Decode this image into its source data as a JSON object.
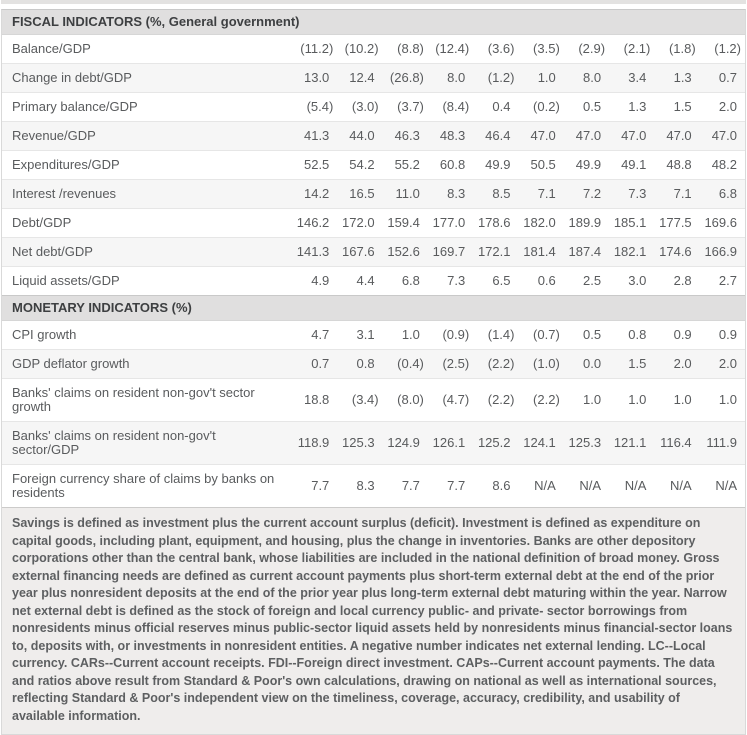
{
  "table": {
    "sections": [
      {
        "header": "FISCAL INDICATORS (%, General government)",
        "rows": [
          {
            "label": "Balance/GDP",
            "values": [
              "(11.2)",
              "(10.2)",
              "(8.8)",
              "(12.4)",
              "(3.6)",
              "(3.5)",
              "(2.9)",
              "(2.1)",
              "(1.8)",
              "(1.2)"
            ]
          },
          {
            "label": "Change in debt/GDP",
            "values": [
              "13.0",
              "12.4",
              "(26.8)",
              "8.0",
              "(1.2)",
              "1.0",
              "8.0",
              "3.4",
              "1.3",
              "0.7"
            ]
          },
          {
            "label": "Primary balance/GDP",
            "values": [
              "(5.4)",
              "(3.0)",
              "(3.7)",
              "(8.4)",
              "0.4",
              "(0.2)",
              "0.5",
              "1.3",
              "1.5",
              "2.0"
            ]
          },
          {
            "label": "Revenue/GDP",
            "values": [
              "41.3",
              "44.0",
              "46.3",
              "48.3",
              "46.4",
              "47.0",
              "47.0",
              "47.0",
              "47.0",
              "47.0"
            ]
          },
          {
            "label": "Expenditures/GDP",
            "values": [
              "52.5",
              "54.2",
              "55.2",
              "60.8",
              "49.9",
              "50.5",
              "49.9",
              "49.1",
              "48.8",
              "48.2"
            ]
          },
          {
            "label": "Interest /revenues",
            "values": [
              "14.2",
              "16.5",
              "11.0",
              "8.3",
              "8.5",
              "7.1",
              "7.2",
              "7.3",
              "7.1",
              "6.8"
            ]
          },
          {
            "label": "Debt/GDP",
            "values": [
              "146.2",
              "172.0",
              "159.4",
              "177.0",
              "178.6",
              "182.0",
              "189.9",
              "185.1",
              "177.5",
              "169.6"
            ]
          },
          {
            "label": "Net debt/GDP",
            "values": [
              "141.3",
              "167.6",
              "152.6",
              "169.7",
              "172.1",
              "181.4",
              "187.4",
              "182.1",
              "174.6",
              "166.9"
            ]
          },
          {
            "label": "Liquid assets/GDP",
            "values": [
              "4.9",
              "4.4",
              "6.8",
              "7.3",
              "6.5",
              "0.6",
              "2.5",
              "3.0",
              "2.8",
              "2.7"
            ]
          }
        ]
      },
      {
        "header": "MONETARY INDICATORS (%)",
        "rows": [
          {
            "label": "CPI growth",
            "values": [
              "4.7",
              "3.1",
              "1.0",
              "(0.9)",
              "(1.4)",
              "(0.7)",
              "0.5",
              "0.8",
              "0.9",
              "0.9"
            ]
          },
          {
            "label": "GDP deflator growth",
            "values": [
              "0.7",
              "0.8",
              "(0.4)",
              "(2.5)",
              "(2.2)",
              "(1.0)",
              "0.0",
              "1.5",
              "2.0",
              "2.0"
            ]
          },
          {
            "label": "Banks' claims on resident non-gov't sector growth",
            "values": [
              "18.8",
              "(3.4)",
              "(8.0)",
              "(4.7)",
              "(2.2)",
              "(2.2)",
              "1.0",
              "1.0",
              "1.0",
              "1.0"
            ]
          },
          {
            "label": "Banks' claims on resident non-gov't sector/GDP",
            "values": [
              "118.9",
              "125.3",
              "124.9",
              "126.1",
              "125.2",
              "124.1",
              "125.3",
              "121.1",
              "116.4",
              "111.9"
            ]
          },
          {
            "label": "Foreign currency share of claims by banks on residents",
            "values": [
              "7.7",
              "8.3",
              "7.7",
              "7.7",
              "8.6",
              "N/A",
              "N/A",
              "N/A",
              "N/A",
              "N/A"
            ]
          }
        ]
      }
    ],
    "footnote": "Savings is defined as investment plus the current account surplus (deficit). Investment is defined as expenditure on capital goods, including plant, equipment, and housing, plus the change in inventories. Banks are other depository corporations other than the central bank, whose liabilities are included in the national definition of broad money. Gross external financing needs are defined as current account payments plus short-term external debt at the end of the prior year plus nonresident deposits at the end of the prior year plus long-term external debt maturing within the year. Narrow net external debt is defined as the stock of foreign and local currency public- and private- sector borrowings from nonresidents minus official reserves minus public-sector liquid assets held by nonresidents minus financial-sector loans to, deposits with, or investments in nonresident entities. A negative number indicates net external lending. LC--Local currency. CARs--Current account receipts. FDI--Foreign direct investment. CAPs--Current account payments. The data and ratios above result from Standard & Poor's own calculations, drawing on national as well as international sources, reflecting Standard & Poor's independent view on the timeliness, coverage, accuracy, credibility, and usability of available information."
  },
  "colors": {
    "section_header_bg": "#e0dfdf",
    "row_alt_bg": "#f6f6f6",
    "footnote_bg": "#efedec",
    "text": "#595b5d",
    "header_text": "#3d3f41"
  }
}
